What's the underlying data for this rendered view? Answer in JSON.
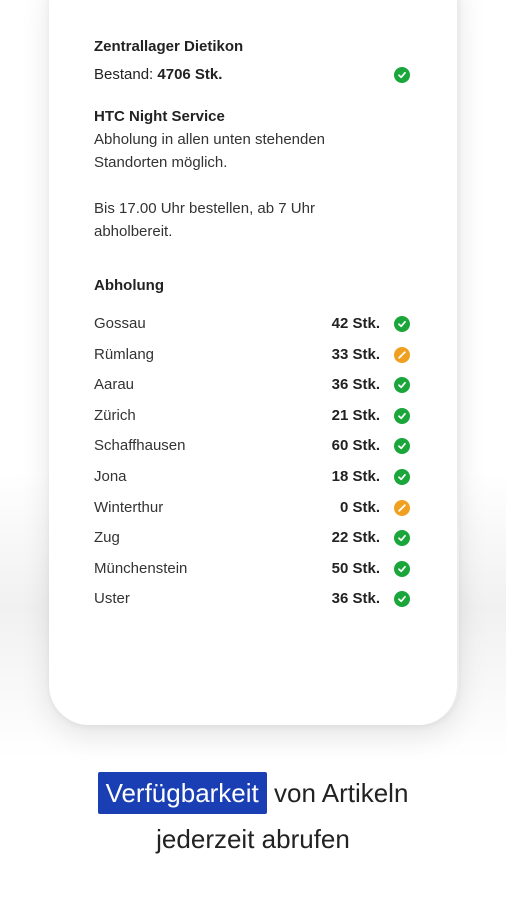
{
  "colors": {
    "ok": "#1aa63a",
    "warning": "#f0a020",
    "highlight": "#1a3fb5"
  },
  "central_stock": {
    "title": "Zentrallager Dietikon",
    "label": "Bestand:",
    "quantity": "4706 Stk.",
    "status": "ok",
    "status_icon": "check-icon"
  },
  "night_service": {
    "title": "HTC Night Service",
    "text": "Abholung in allen unten stehenden Standorten möglich.",
    "hours": "Bis 17.00 Uhr bestellen, ab 7 Uhr abholbereit."
  },
  "pickup": {
    "title": "Abholung",
    "locations": [
      {
        "name": "Gossau",
        "count": "42 Stk.",
        "status": "ok"
      },
      {
        "name": "Rümlang",
        "count": "33 Stk.",
        "status": "warning"
      },
      {
        "name": "Aarau",
        "count": "36 Stk.",
        "status": "ok"
      },
      {
        "name": "Zürich",
        "count": "21 Stk.",
        "status": "ok"
      },
      {
        "name": "Schaffhausen",
        "count": "60 Stk.",
        "status": "ok"
      },
      {
        "name": "Jona",
        "count": "18 Stk.",
        "status": "ok"
      },
      {
        "name": "Winterthur",
        "count": "0 Stk.",
        "status": "warning"
      },
      {
        "name": "Zug",
        "count": "22 Stk.",
        "status": "ok"
      },
      {
        "name": "Münchenstein",
        "count": "50 Stk.",
        "status": "ok"
      },
      {
        "name": "Uster",
        "count": "36 Stk.",
        "status": "ok"
      }
    ]
  },
  "caption": {
    "highlight": "Verfügbarkeit",
    "line1_rest": "von Artikeln",
    "line2": "jederzeit abrufen"
  }
}
